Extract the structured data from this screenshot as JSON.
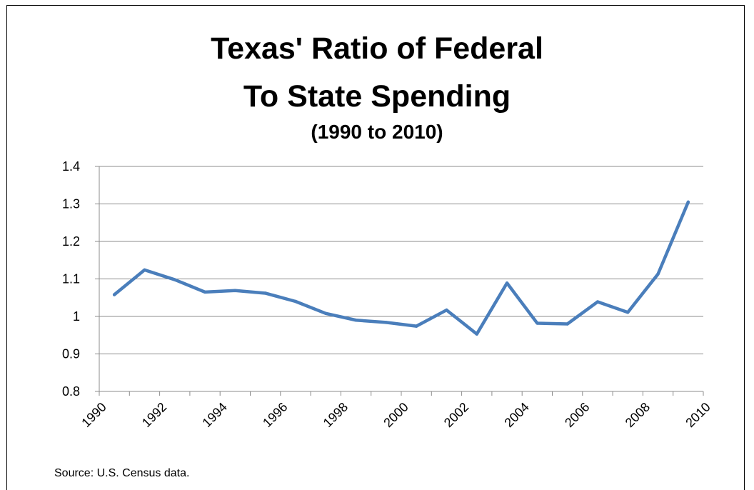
{
  "chart_data": {
    "type": "line",
    "title_lines": [
      "Texas' Ratio of Federal",
      "To State Spending",
      "(1990 to 2010)"
    ],
    "xlabel": "",
    "ylabel": "",
    "source": "Source: U.S. Census data.",
    "ylim": [
      0.8,
      1.4
    ],
    "yticks": [
      "0.8",
      "0.9",
      "1",
      "1.1",
      "1.2",
      "1.3",
      "1.4"
    ],
    "xlim": [
      1990,
      2010
    ],
    "xticks": [
      "1990",
      "1992",
      "1994",
      "1996",
      "1998",
      "2000",
      "2002",
      "2004",
      "2006",
      "2008",
      "2010"
    ],
    "grid": "horizontal",
    "legend": "none",
    "series": [
      {
        "color": "#4a7ebb",
        "x": [
          1990,
          1991,
          1992,
          1993,
          1994,
          1995,
          1996,
          1997,
          1998,
          1999,
          2000,
          2001,
          2002,
          2003,
          2004,
          2005,
          2006,
          2007,
          2008,
          2009
        ],
        "values": [
          1.058,
          1.124,
          1.098,
          1.065,
          1.069,
          1.062,
          1.04,
          1.008,
          0.99,
          0.984,
          0.974,
          1.017,
          0.953,
          1.089,
          0.982,
          0.98,
          1.039,
          1.011,
          1.113,
          1.305
        ]
      }
    ]
  }
}
